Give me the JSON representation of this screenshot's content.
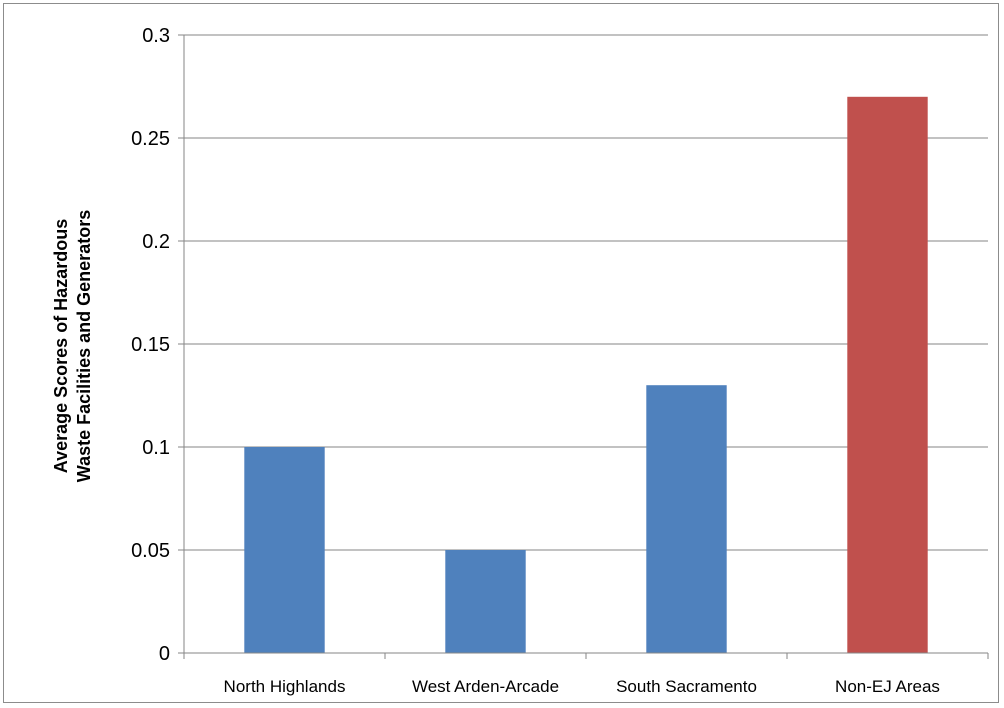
{
  "chart_data": {
    "type": "bar",
    "title": "",
    "xlabel": "",
    "ylabel_lines": [
      "Average Scores of Hazardous",
      "Waste Facilities and Generators"
    ],
    "categories": [
      "North Highlands",
      "West Arden-Arcade",
      "South Sacramento",
      "Non-EJ Areas"
    ],
    "values": [
      0.1,
      0.05,
      0.13,
      0.27
    ],
    "bar_colors": [
      "#4f81bd",
      "#4f81bd",
      "#4f81bd",
      "#c0504d"
    ],
    "ylim": [
      0,
      0.3
    ],
    "yticks": [
      0,
      0.05,
      0.1,
      0.15,
      0.2,
      0.25,
      0.3
    ],
    "ytick_labels": [
      "0",
      "0.05",
      "0.1",
      "0.15",
      "0.2",
      "0.25",
      "0.3"
    ],
    "grid": true,
    "legend": "none"
  }
}
